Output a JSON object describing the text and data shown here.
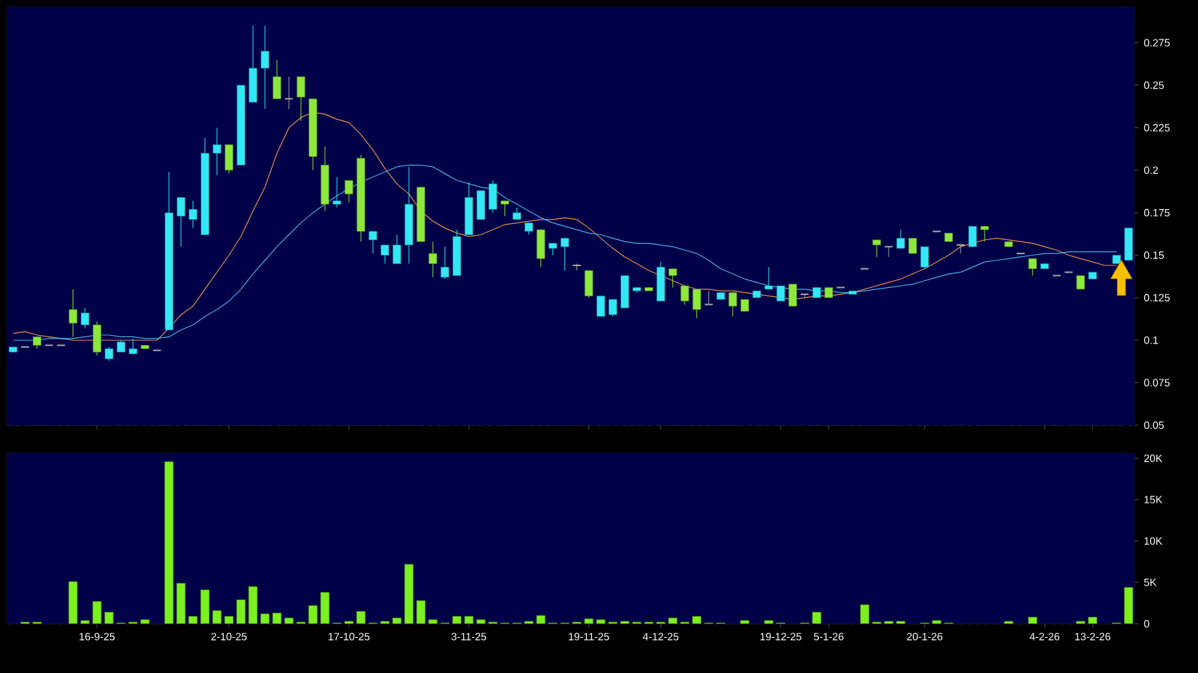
{
  "chart_data": [
    {
      "type": "candlestick",
      "categories": [
        null,
        null,
        null,
        null,
        null,
        null,
        null,
        null,
        null,
        null,
        null,
        null,
        null,
        null,
        null,
        null,
        null,
        null,
        null,
        null,
        null,
        null,
        null,
        null,
        null,
        null,
        null,
        null,
        null,
        null,
        null,
        null,
        null,
        null,
        null,
        null,
        null,
        null,
        null,
        null,
        null,
        null,
        null,
        null,
        null,
        null,
        null,
        null,
        null,
        null,
        null,
        null,
        null,
        null,
        null,
        null,
        null,
        null,
        null,
        null,
        null,
        null,
        null,
        null,
        null,
        null,
        null,
        null,
        null,
        null,
        null,
        null,
        null,
        null,
        null,
        null,
        null,
        null,
        null,
        null,
        null,
        null,
        null,
        null,
        null,
        null,
        null,
        null,
        null,
        null,
        null,
        null,
        null,
        null
      ],
      "ohlc": [
        [
          0.093,
          0.096,
          0.093,
          0.096
        ],
        [
          0.096,
          0.096,
          0.096,
          0.096
        ],
        [
          0.102,
          0.102,
          0.095,
          0.097
        ],
        [
          0.097,
          0.097,
          0.097,
          0.097
        ],
        [
          0.097,
          0.097,
          0.097,
          0.097
        ],
        [
          0.118,
          0.13,
          0.102,
          0.11
        ],
        [
          0.109,
          0.119,
          0.107,
          0.116
        ],
        [
          0.109,
          0.111,
          0.091,
          0.093
        ],
        [
          0.089,
          0.096,
          0.088,
          0.095
        ],
        [
          0.093,
          0.1,
          0.093,
          0.099
        ],
        [
          0.092,
          0.101,
          0.092,
          0.095
        ],
        [
          0.097,
          0.097,
          0.095,
          0.095
        ],
        [
          0.094,
          0.094,
          0.094,
          0.094
        ],
        [
          0.106,
          0.199,
          0.106,
          0.175
        ],
        [
          0.173,
          0.184,
          0.155,
          0.184
        ],
        [
          0.171,
          0.182,
          0.166,
          0.177
        ],
        [
          0.162,
          0.219,
          0.162,
          0.21
        ],
        [
          0.21,
          0.225,
          0.197,
          0.215
        ],
        [
          0.215,
          0.215,
          0.198,
          0.2
        ],
        [
          0.203,
          0.25,
          0.203,
          0.25
        ],
        [
          0.24,
          0.285,
          0.24,
          0.26
        ],
        [
          0.26,
          0.285,
          0.236,
          0.27
        ],
        [
          0.255,
          0.265,
          0.242,
          0.242
        ],
        [
          0.242,
          0.255,
          0.236,
          0.242
        ],
        [
          0.255,
          0.255,
          0.229,
          0.243
        ],
        [
          0.242,
          0.242,
          0.2,
          0.208
        ],
        [
          0.203,
          0.214,
          0.176,
          0.18
        ],
        [
          0.18,
          0.196,
          0.178,
          0.182
        ],
        [
          0.194,
          0.194,
          0.181,
          0.186
        ],
        [
          0.207,
          0.209,
          0.158,
          0.164
        ],
        [
          0.159,
          0.164,
          0.151,
          0.164
        ],
        [
          0.15,
          0.156,
          0.145,
          0.156
        ],
        [
          0.145,
          0.162,
          0.145,
          0.156
        ],
        [
          0.156,
          0.202,
          0.145,
          0.18
        ],
        [
          0.19,
          0.19,
          0.158,
          0.158
        ],
        [
          0.151,
          0.158,
          0.137,
          0.145
        ],
        [
          0.137,
          0.155,
          0.136,
          0.143
        ],
        [
          0.138,
          0.165,
          0.138,
          0.161
        ],
        [
          0.162,
          0.193,
          0.162,
          0.184
        ],
        [
          0.171,
          0.188,
          0.171,
          0.188
        ],
        [
          0.177,
          0.194,
          0.175,
          0.192
        ],
        [
          0.182,
          0.182,
          0.173,
          0.18
        ],
        [
          0.171,
          0.178,
          0.171,
          0.175
        ],
        [
          0.164,
          0.169,
          0.162,
          0.169
        ],
        [
          0.165,
          0.165,
          0.143,
          0.148
        ],
        [
          0.154,
          0.157,
          0.15,
          0.157
        ],
        [
          0.155,
          0.16,
          0.141,
          0.16
        ],
        [
          0.144,
          0.145,
          0.141,
          0.144
        ],
        [
          0.141,
          0.141,
          0.125,
          0.126
        ],
        [
          0.114,
          0.126,
          0.114,
          0.126
        ],
        [
          0.115,
          0.124,
          0.114,
          0.124
        ],
        [
          0.119,
          0.138,
          0.119,
          0.138
        ],
        [
          0.129,
          0.131,
          0.128,
          0.131
        ],
        [
          0.131,
          0.131,
          0.129,
          0.129
        ],
        [
          0.123,
          0.146,
          0.123,
          0.143
        ],
        [
          0.142,
          0.142,
          0.131,
          0.138
        ],
        [
          0.132,
          0.132,
          0.121,
          0.123
        ],
        [
          0.13,
          0.13,
          0.113,
          0.118
        ],
        [
          0.121,
          0.129,
          0.121,
          0.121
        ],
        [
          0.124,
          0.128,
          0.124,
          0.128
        ],
        [
          0.128,
          0.128,
          0.114,
          0.12
        ],
        [
          0.124,
          0.124,
          0.117,
          0.117
        ],
        [
          0.125,
          0.129,
          0.125,
          0.129
        ],
        [
          0.13,
          0.143,
          0.13,
          0.132
        ],
        [
          0.123,
          0.132,
          0.123,
          0.132
        ],
        [
          0.133,
          0.133,
          0.12,
          0.12
        ],
        [
          0.127,
          0.127,
          0.125,
          0.127
        ],
        [
          0.125,
          0.131,
          0.125,
          0.131
        ],
        [
          0.131,
          0.131,
          0.125,
          0.125
        ],
        [
          0.131,
          0.131,
          0.131,
          0.131
        ],
        [
          0.127,
          0.129,
          0.127,
          0.129
        ],
        [
          0.142,
          0.142,
          0.142,
          0.142
        ],
        [
          0.159,
          0.159,
          0.149,
          0.156
        ],
        [
          0.155,
          0.155,
          0.149,
          0.155
        ],
        [
          0.154,
          0.165,
          0.154,
          0.16
        ],
        [
          0.16,
          0.16,
          0.151,
          0.151
        ],
        [
          0.143,
          0.155,
          0.142,
          0.155
        ],
        [
          0.164,
          0.164,
          0.164,
          0.164
        ],
        [
          0.163,
          0.163,
          0.158,
          0.158
        ],
        [
          0.156,
          0.156,
          0.151,
          0.156
        ],
        [
          0.155,
          0.167,
          0.155,
          0.167
        ],
        [
          0.167,
          0.167,
          0.158,
          0.165
        ],
        null,
        [
          0.158,
          0.158,
          0.155,
          0.155
        ],
        [
          0.151,
          0.151,
          0.151,
          0.151
        ],
        [
          0.148,
          0.148,
          0.138,
          0.142
        ],
        [
          0.142,
          0.145,
          0.142,
          0.145
        ],
        [
          0.138,
          0.138,
          0.138,
          0.138
        ],
        [
          0.14,
          0.14,
          0.14,
          0.14
        ],
        [
          0.138,
          0.138,
          0.13,
          0.13
        ],
        [
          0.136,
          0.14,
          0.136,
          0.14
        ],
        null,
        [
          0.145,
          0.15,
          0.145,
          0.15
        ],
        [
          0.147,
          0.166,
          0.147,
          0.166
        ]
      ],
      "colors": [
        "#33e8f5",
        "#a8a8a8",
        "#8ee83a",
        "#a8a8a8",
        "#a8a8a8",
        "#8ee83a",
        "#33e8f5",
        "#8ee83a",
        "#33e8f5",
        "#33e8f5",
        "#33e8f5",
        "#8ee83a",
        "#a8a8a8",
        "#33e8f5",
        "#33e8f5",
        "#33e8f5",
        "#33e8f5",
        "#33e8f5",
        "#8ee83a",
        "#33e8f5",
        "#33e8f5",
        "#33e8f5",
        "#8ee83a",
        "#a8a8a8",
        "#8ee83a",
        "#8ee83a",
        "#8ee83a",
        "#33e8f5",
        "#8ee83a",
        "#8ee83a",
        "#33e8f5",
        "#33e8f5",
        "#33e8f5",
        "#33e8f5",
        "#8ee83a",
        "#8ee83a",
        "#33e8f5",
        "#33e8f5",
        "#33e8f5",
        "#33e8f5",
        "#33e8f5",
        "#8ee83a",
        "#33e8f5",
        "#33e8f5",
        "#8ee83a",
        "#33e8f5",
        "#33e8f5",
        "#a8a8a8",
        "#8ee83a",
        "#33e8f5",
        "#33e8f5",
        "#33e8f5",
        "#33e8f5",
        "#8ee83a",
        "#33e8f5",
        "#8ee83a",
        "#8ee83a",
        "#8ee83a",
        "#a8a8a8",
        "#33e8f5",
        "#8ee83a",
        "#8ee83a",
        "#33e8f5",
        "#33e8f5",
        "#33e8f5",
        "#8ee83a",
        "#a8a8a8",
        "#33e8f5",
        "#8ee83a",
        "#a8a8a8",
        "#33e8f5",
        "#a8a8a8",
        "#8ee83a",
        "#a8a8a8",
        "#33e8f5",
        "#8ee83a",
        "#33e8f5",
        "#a8a8a8",
        "#8ee83a",
        "#a8a8a8",
        "#33e8f5",
        "#8ee83a",
        null,
        "#8ee83a",
        "#a8a8a8",
        "#8ee83a",
        "#33e8f5",
        "#a8a8a8",
        "#a8a8a8",
        "#8ee83a",
        "#33e8f5",
        null,
        "#33e8f5",
        "#33e8f5"
      ],
      "series": [
        {
          "type": "line",
          "color": "#e8904a",
          "values": [
            0.104,
            0.105,
            0.103,
            0.102,
            0.101,
            0.1,
            0.1,
            0.1,
            0.1,
            0.1,
            0.1,
            0.1,
            0.1,
            0.107,
            0.115,
            0.12,
            0.13,
            0.14,
            0.15,
            0.161,
            0.176,
            0.19,
            0.21,
            0.225,
            0.231,
            0.234,
            0.233,
            0.23,
            0.228,
            0.221,
            0.212,
            0.201,
            0.192,
            0.186,
            0.176,
            0.17,
            0.166,
            0.163,
            0.161,
            0.162,
            0.165,
            0.168,
            0.169,
            0.17,
            0.171,
            0.171,
            0.172,
            0.171,
            0.166,
            0.16,
            0.154,
            0.149,
            0.145,
            0.141,
            0.138,
            0.135,
            0.132,
            0.13,
            0.13,
            0.129,
            0.129,
            0.128,
            0.127,
            0.126,
            0.125,
            0.124,
            0.125,
            0.126,
            0.126,
            0.127,
            0.128,
            0.13,
            0.132,
            0.134,
            0.136,
            0.139,
            0.142,
            0.146,
            0.15,
            0.155,
            0.157,
            0.159,
            0.16,
            0.159,
            0.158,
            0.157,
            0.155,
            0.153,
            0.15,
            0.148,
            0.146,
            0.144,
            0.144,
            null
          ]
        },
        {
          "type": "line",
          "color": "#4aaee8",
          "values": [
            0.1,
            0.1,
            0.1,
            0.101,
            0.101,
            0.101,
            0.102,
            0.103,
            0.103,
            0.102,
            0.102,
            0.101,
            0.101,
            0.102,
            0.106,
            0.109,
            0.114,
            0.118,
            0.123,
            0.13,
            0.139,
            0.147,
            0.155,
            0.162,
            0.169,
            0.175,
            0.18,
            0.185,
            0.189,
            0.193,
            0.196,
            0.199,
            0.202,
            0.203,
            0.203,
            0.202,
            0.198,
            0.194,
            0.192,
            0.19,
            0.189,
            0.184,
            0.18,
            0.176,
            0.172,
            0.169,
            0.167,
            0.165,
            0.163,
            0.162,
            0.16,
            0.158,
            0.157,
            0.157,
            0.156,
            0.155,
            0.153,
            0.151,
            0.147,
            0.142,
            0.139,
            0.136,
            0.134,
            0.132,
            0.131,
            0.13,
            0.13,
            0.129,
            0.129,
            0.128,
            0.128,
            0.129,
            0.13,
            0.131,
            0.132,
            0.133,
            0.135,
            0.137,
            0.139,
            0.14,
            0.143,
            0.146,
            0.147,
            0.148,
            0.149,
            0.15,
            0.151,
            0.151,
            0.152,
            0.152,
            0.152,
            0.152,
            0.152,
            null
          ]
        }
      ],
      "ylim": [
        0.05,
        0.296
      ],
      "yticks": [
        0.05,
        0.075,
        0.1,
        0.125,
        0.15,
        0.175,
        0.2,
        0.225,
        0.25,
        0.275
      ],
      "grid": true,
      "tick_labels": "y"
    },
    {
      "type": "bar",
      "categories": [
        null,
        null,
        null,
        null,
        null,
        null,
        null,
        "16-9-25",
        null,
        null,
        null,
        null,
        null,
        null,
        null,
        null,
        null,
        null,
        "2-10-25",
        null,
        null,
        null,
        null,
        null,
        null,
        null,
        null,
        null,
        "17-10-25",
        null,
        null,
        null,
        null,
        null,
        null,
        null,
        null,
        null,
        "3-11-25",
        null,
        null,
        null,
        null,
        null,
        null,
        null,
        null,
        null,
        "19-11-25",
        null,
        null,
        null,
        null,
        null,
        "4-12-25",
        null,
        null,
        null,
        null,
        null,
        null,
        null,
        null,
        null,
        "19-12-25",
        null,
        null,
        null,
        "5-1-26",
        null,
        null,
        null,
        null,
        null,
        null,
        null,
        "20-1-26",
        null,
        null,
        null,
        null,
        null,
        null,
        null,
        null,
        null,
        "4-2-26",
        null,
        null,
        null,
        "13-2-26",
        null,
        null,
        null
      ],
      "values": [
        null,
        200,
        200,
        null,
        null,
        5100,
        400,
        2700,
        1400,
        100,
        200,
        500,
        null,
        19600,
        4900,
        900,
        4100,
        1600,
        900,
        2900,
        4500,
        1200,
        1300,
        700,
        200,
        2200,
        3800,
        100,
        300,
        1500,
        100,
        300,
        700,
        7200,
        2800,
        500,
        100,
        900,
        900,
        500,
        200,
        100,
        100,
        300,
        1000,
        100,
        100,
        200,
        600,
        500,
        200,
        300,
        200,
        200,
        200,
        700,
        200,
        900,
        100,
        100,
        null,
        400,
        null,
        400,
        100,
        null,
        100,
        1400,
        null,
        null,
        null,
        2300,
        200,
        300,
        300,
        null,
        100,
        400,
        100,
        null,
        null,
        null,
        null,
        300,
        null,
        800,
        null,
        null,
        null,
        300,
        800,
        null,
        100,
        4400
      ],
      "color": "#7cf01e",
      "ylim": [
        0,
        20600
      ],
      "yticks": [
        0,
        {
          "value": 5000,
          "label": "5K"
        },
        {
          "value": 10000,
          "label": "10K"
        },
        {
          "value": 15000,
          "label": "15K"
        },
        {
          "value": 20000,
          "label": "20K"
        }
      ],
      "grid": true
    }
  ]
}
